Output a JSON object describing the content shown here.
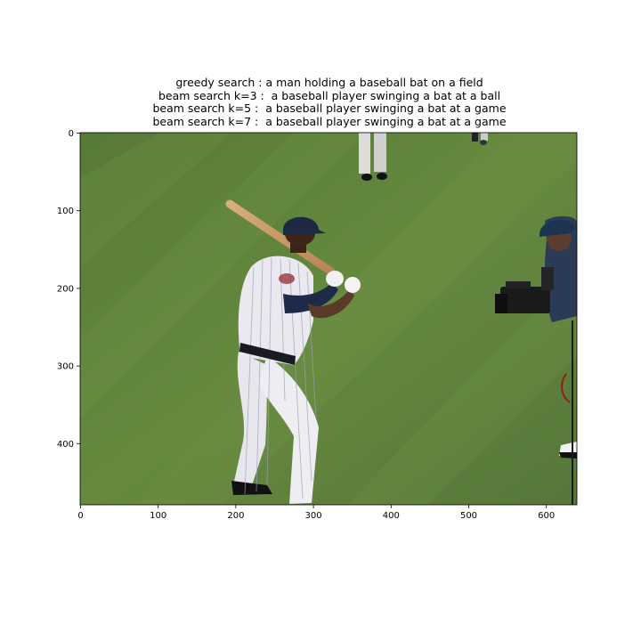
{
  "caption_lines": [
    "greedy search : a man holding a baseball bat on a field",
    "beam search k=3 :  a baseball player swinging a bat at a ball",
    "beam search k=5 :  a baseball player swinging a bat at a game",
    "beam search k=7 :  a baseball player swinging a bat at a game"
  ],
  "axes": {
    "x_ticks": [
      "0",
      "100",
      "200",
      "300",
      "400",
      "500",
      "600"
    ],
    "y_ticks": [
      "0",
      "100",
      "200",
      "300",
      "400"
    ]
  },
  "image": {
    "field_color": "#5b7f3a",
    "uniform_color": "#e8e8ee",
    "cap_color": "#1e2a44"
  }
}
